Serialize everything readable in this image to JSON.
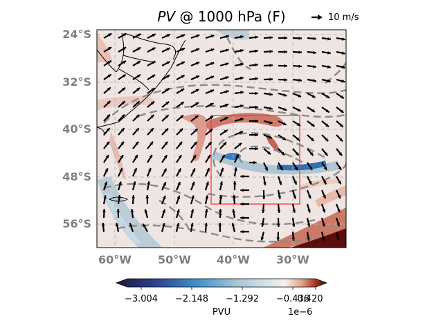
{
  "title": {
    "variable": "PV",
    "rest": "@ 1000 hPa (F)"
  },
  "reference_vector": {
    "label": "10 m/s"
  },
  "map": {
    "projection": "PlateCarree",
    "lon_range": [
      -63,
      -21
    ],
    "lat_range": [
      -60,
      -23
    ],
    "latitude_labels": [
      "24°S",
      "32°S",
      "40°S",
      "48°S",
      "56°S"
    ],
    "latitude_values": [
      -24,
      -32,
      -40,
      -48,
      -56
    ],
    "longitude_labels": [
      "60°W",
      "50°W",
      "40°W",
      "30°W"
    ],
    "longitude_values": [
      -60,
      -50,
      -40,
      -30
    ],
    "gridlines": true,
    "analysis_box": {
      "lon": [
        -44,
        -29
      ],
      "lat": [
        -53,
        -38
      ],
      "color": "#ff3333"
    },
    "features": [
      "coastlines",
      "country borders",
      "PV shading",
      "wind vectors",
      "pressure contours (dashed gray)"
    ]
  },
  "colorbar": {
    "ticks": [
      "−3.004",
      "−2.148",
      "−1.292",
      "−0.436",
      "0.420"
    ],
    "unit": "PVU",
    "exponent": "1e−6",
    "colors": [
      "#1a1c3a",
      "#2c3e8c",
      "#3f8fc8",
      "#a8c8d8",
      "#f2f2f2",
      "#e0a88a",
      "#a2301c",
      "#3d0a0a"
    ]
  }
}
